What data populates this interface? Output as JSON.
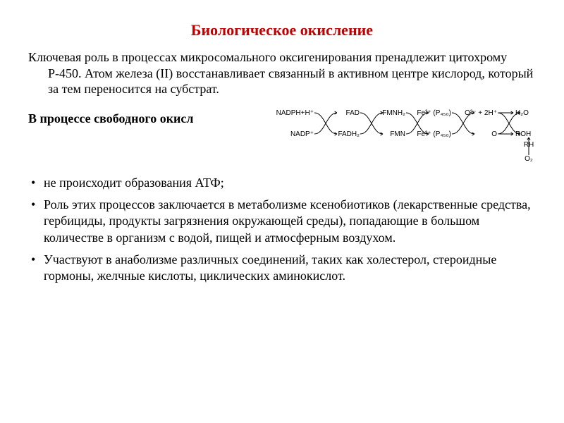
{
  "title": {
    "text": "Биологическое окисление",
    "color": "#c00000",
    "fontsize": 22
  },
  "lead": "Ключевая роль в процессах микросомального оксигенирования пренадлежит цитохрому  Р-450. Атом железа (II) восстанавливает связанный в активном центре кислород, который за тем переносится на субстрат.",
  "diagram": {
    "type": "electron-transport-chain",
    "pairs": [
      {
        "top": "NADPH+H⁺",
        "bottom": "NADP⁺"
      },
      {
        "top": "FAD",
        "bottom": "FADH₂"
      },
      {
        "top": "FMNH₂",
        "bottom": "FMN"
      },
      {
        "top": "Fe³⁺ (P₄₅₀)",
        "bottom": "Fe²⁺ (P₄₅₀)"
      },
      {
        "top": "O²⁻ + 2H⁺",
        "top_right": "H₂O",
        "bottom": "O",
        "bottom_right": "ROH"
      }
    ],
    "terminal": {
      "label_top": "RH",
      "label_bottom": "O₂"
    },
    "line_color": "#000000",
    "font_family": "Arial",
    "font_size": 10
  },
  "subheading": "В процессе свободного окисл",
  "bullets": [
    "не происходит образования АТФ;",
    "Роль этих процессов заключается в метаболизме ксенобиотиков (лекарственные средства, гербициды, продукты загрязнения окружающей среды), попадающие в большом количестве в организм с водой, пищей и атмосферным воздухом.",
    "Участвуют в анаболизме различных соединений, таких как холестерол, стероидные гормоны, желчные кислоты, циклических аминокислот."
  ],
  "colors": {
    "text": "#000000",
    "background": "#ffffff"
  }
}
